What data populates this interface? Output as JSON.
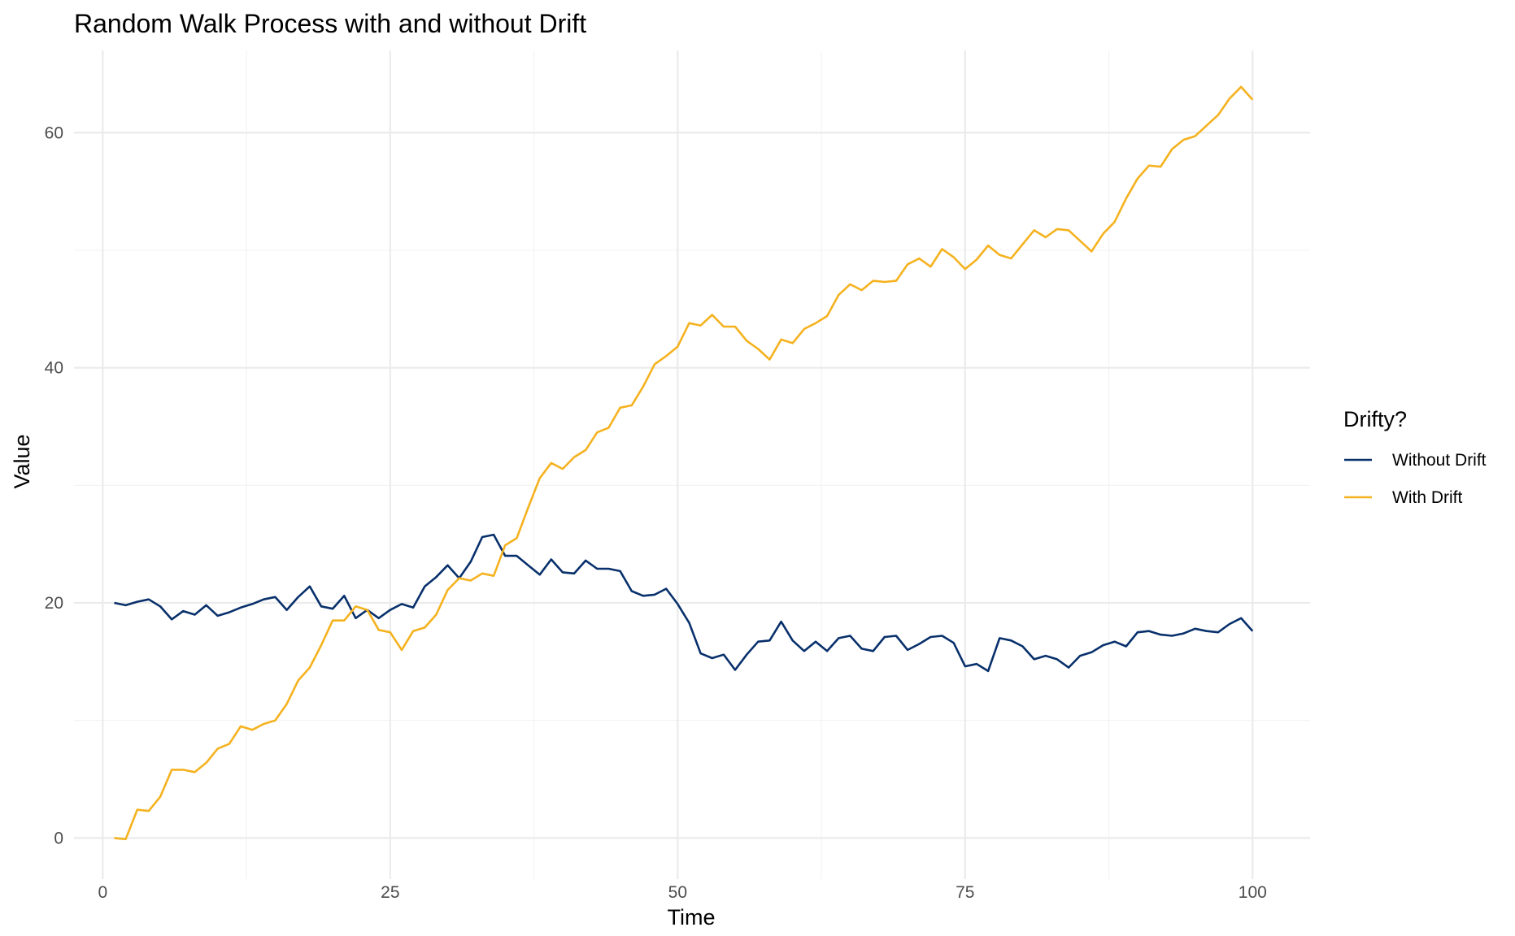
{
  "chart_data": {
    "type": "line",
    "title": "Random Walk Process with and without Drift",
    "xlabel": "Time",
    "ylabel": "Value",
    "xlim": [
      -2.5,
      105
    ],
    "ylim": [
      -3.5,
      67
    ],
    "xticks": [
      0,
      25,
      50,
      75,
      100
    ],
    "yticks": [
      0,
      20,
      40,
      60
    ],
    "grid": true,
    "legend": {
      "title": "Drifty?",
      "position": "right",
      "entries": [
        "Without Drift",
        "With Drift"
      ]
    },
    "x_start": 1,
    "series": [
      {
        "name": "Without Drift",
        "color": "#08306b",
        "values": [
          20.0,
          19.8,
          20.1,
          20.3,
          19.7,
          18.6,
          19.3,
          19.0,
          19.8,
          18.9,
          19.2,
          19.6,
          19.9,
          20.3,
          20.5,
          19.4,
          20.5,
          21.4,
          19.7,
          19.5,
          20.6,
          18.7,
          19.4,
          18.7,
          19.4,
          19.9,
          19.6,
          21.4,
          22.2,
          23.2,
          22.1,
          23.5,
          25.6,
          25.8,
          24.0,
          24.0,
          23.2,
          22.4,
          23.7,
          22.6,
          22.5,
          23.6,
          22.9,
          22.9,
          22.7,
          21.0,
          20.6,
          20.7,
          21.2,
          19.9,
          18.3,
          15.7,
          15.3,
          15.6,
          14.3,
          15.6,
          16.7,
          16.8,
          18.4,
          16.8,
          15.9,
          16.7,
          15.9,
          17.0,
          17.2,
          16.1,
          15.9,
          17.1,
          17.2,
          16.0,
          16.5,
          17.1,
          17.2,
          16.6,
          14.6,
          14.8,
          14.2,
          17.0,
          16.8,
          16.3,
          15.2,
          15.5,
          15.2,
          14.5,
          15.5,
          15.8,
          16.4,
          16.7,
          16.3,
          17.5,
          17.6,
          17.3,
          17.2,
          17.4,
          17.8,
          17.6,
          17.5,
          18.2,
          18.7,
          17.6
        ]
      },
      {
        "name": "With Drift",
        "color": "#f5b21f",
        "values": [
          0.0,
          -0.1,
          2.4,
          2.3,
          3.5,
          5.8,
          5.8,
          5.6,
          6.4,
          7.6,
          8.0,
          9.5,
          9.2,
          9.7,
          10.0,
          11.4,
          13.4,
          14.5,
          16.4,
          18.5,
          18.5,
          19.7,
          19.4,
          17.7,
          17.5,
          16.0,
          17.6,
          17.9,
          19.0,
          21.1,
          22.1,
          21.9,
          22.5,
          22.3,
          24.9,
          25.5,
          28.1,
          30.6,
          31.9,
          31.4,
          32.4,
          33.0,
          34.5,
          34.9,
          36.6,
          36.8,
          38.4,
          40.3,
          41.0,
          41.8,
          43.8,
          43.6,
          44.5,
          43.5,
          43.5,
          42.3,
          41.6,
          40.7,
          42.4,
          42.1,
          43.3,
          43.8,
          44.4,
          46.2,
          47.1,
          46.6,
          47.4,
          47.3,
          47.4,
          48.8,
          49.3,
          48.6,
          50.1,
          49.4,
          48.4,
          49.2,
          50.4,
          49.6,
          49.3,
          50.5,
          51.7,
          51.1,
          51.8,
          51.7,
          50.8,
          49.9,
          51.4,
          52.4,
          54.4,
          56.1,
          57.2,
          57.1,
          58.6,
          59.4,
          59.7,
          60.6,
          61.5,
          62.9,
          63.9,
          62.8
        ]
      }
    ]
  }
}
